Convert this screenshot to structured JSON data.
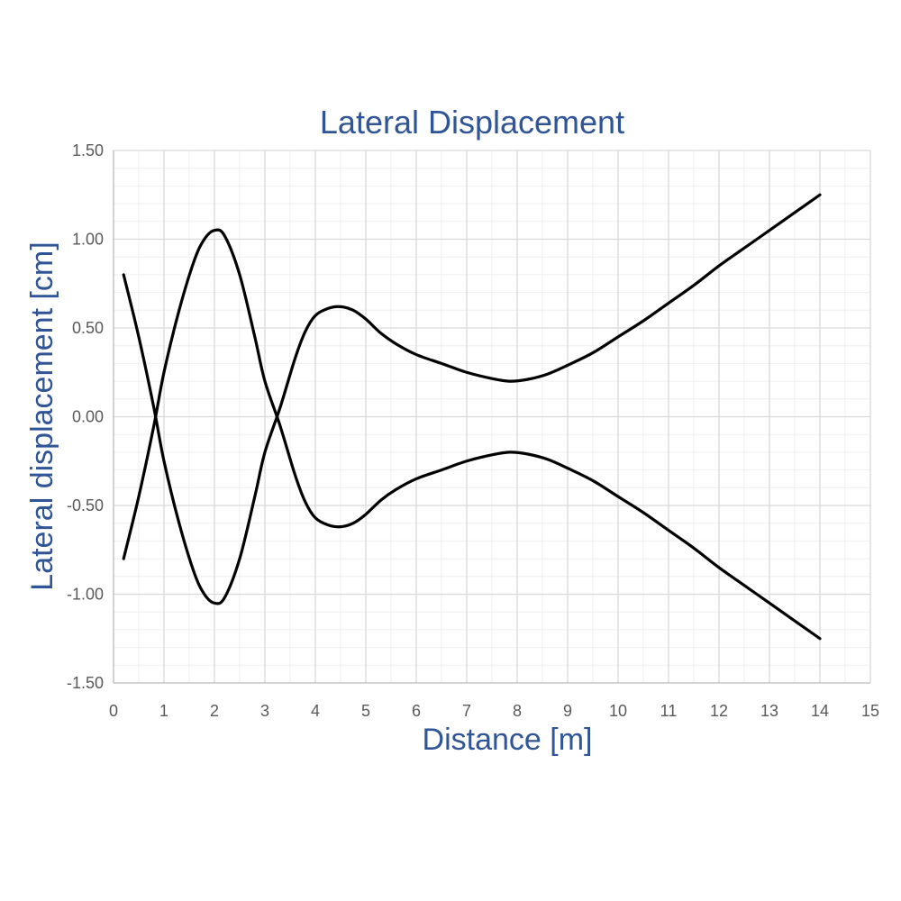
{
  "chart_data": {
    "type": "line",
    "title": "Lateral Displacement",
    "xlabel": "Distance [m]",
    "ylabel": "Lateral displacement [cm]",
    "xlim": [
      0,
      15
    ],
    "ylim": [
      -1.5,
      1.5
    ],
    "x_ticks": [
      "0",
      "1",
      "2",
      "3",
      "4",
      "5",
      "6",
      "7",
      "8",
      "9",
      "10",
      "11",
      "12",
      "13",
      "14",
      "15"
    ],
    "y_ticks": [
      "1.50",
      "1.00",
      "0.50",
      "0.00",
      "-0.50",
      "-1.00",
      "-1.50"
    ],
    "grid": true,
    "minor_grid": true,
    "legend": "none",
    "series_color": "#000000",
    "series": [
      {
        "x": [
          0.2,
          0.5,
          0.8,
          1.0,
          1.3,
          1.6,
          1.8,
          2.0,
          2.2,
          2.5,
          2.8,
          3.0,
          3.3,
          3.6,
          3.8,
          4.0,
          4.25,
          4.5,
          4.75,
          5.0,
          5.3,
          5.6,
          6.0,
          6.5,
          7.0,
          7.5,
          7.85,
          8.2,
          8.6,
          9.0,
          9.5,
          10.0,
          10.5,
          11.0,
          11.5,
          12.0,
          12.5,
          13.0,
          13.5,
          14.0
        ],
        "y": [
          -0.8,
          -0.45,
          -0.05,
          0.25,
          0.6,
          0.88,
          1.0,
          1.05,
          1.02,
          0.8,
          0.45,
          0.2,
          -0.05,
          -0.33,
          -0.48,
          -0.57,
          -0.61,
          -0.62,
          -0.6,
          -0.55,
          -0.47,
          -0.41,
          -0.35,
          -0.3,
          -0.25,
          -0.215,
          -0.2,
          -0.21,
          -0.24,
          -0.29,
          -0.36,
          -0.45,
          -0.54,
          -0.64,
          -0.74,
          -0.85,
          -0.95,
          -1.05,
          -1.15,
          -1.25
        ]
      },
      {
        "x": [
          0.2,
          0.5,
          0.8,
          1.0,
          1.3,
          1.6,
          1.8,
          2.0,
          2.2,
          2.5,
          2.8,
          3.0,
          3.3,
          3.6,
          3.8,
          4.0,
          4.25,
          4.5,
          4.75,
          5.0,
          5.3,
          5.6,
          6.0,
          6.5,
          7.0,
          7.5,
          7.85,
          8.2,
          8.6,
          9.0,
          9.5,
          10.0,
          10.5,
          11.0,
          11.5,
          12.0,
          12.5,
          13.0,
          13.5,
          14.0
        ],
        "y": [
          0.8,
          0.45,
          0.05,
          -0.25,
          -0.6,
          -0.88,
          -1.0,
          -1.05,
          -1.02,
          -0.8,
          -0.45,
          -0.2,
          0.05,
          0.33,
          0.48,
          0.57,
          0.61,
          0.62,
          0.6,
          0.55,
          0.47,
          0.41,
          0.35,
          0.3,
          0.25,
          0.215,
          0.2,
          0.21,
          0.24,
          0.29,
          0.36,
          0.45,
          0.54,
          0.64,
          0.74,
          0.85,
          0.95,
          1.05,
          1.15,
          1.25
        ]
      }
    ]
  }
}
